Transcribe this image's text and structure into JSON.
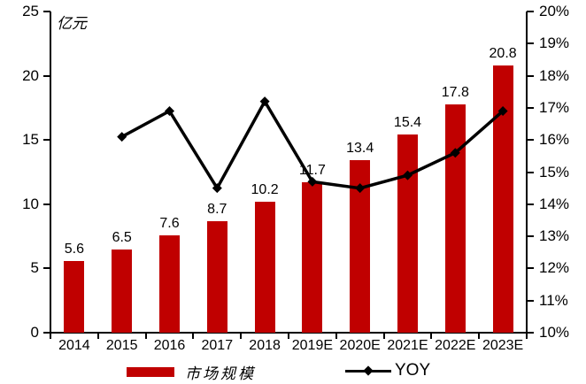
{
  "chart": {
    "unit_label": "亿元",
    "legend": [
      {
        "label": "市场规模",
        "marker": "bar-swatch",
        "color": "#C00000"
      },
      {
        "label": "YOY",
        "marker": "line-diamond",
        "color": "#000000"
      }
    ]
  },
  "chart_data": {
    "type": "bar",
    "categories": [
      "2014",
      "2015",
      "2016",
      "2017",
      "2018",
      "2019E",
      "2020E",
      "2021E",
      "2022E",
      "2023E"
    ],
    "series": [
      {
        "name": "市场规模",
        "type": "bar",
        "axis": "left",
        "color": "#C00000",
        "values": [
          5.6,
          6.5,
          7.6,
          8.7,
          10.2,
          11.7,
          13.4,
          15.4,
          17.8,
          20.8
        ],
        "labels": [
          "5.6",
          "6.5",
          "7.6",
          "8.7",
          "10.2",
          "11.7",
          "13.4",
          "15.4",
          "17.8",
          "20.8"
        ]
      },
      {
        "name": "YOY",
        "type": "line",
        "axis": "right",
        "color": "#000000",
        "marker": "diamond",
        "values": [
          null,
          16.1,
          16.9,
          14.5,
          17.2,
          14.7,
          14.5,
          14.9,
          15.6,
          16.9
        ]
      }
    ],
    "left_axis": {
      "label": "亿元",
      "min": 0,
      "max": 25,
      "ticks": [
        0,
        5,
        10,
        15,
        20,
        25
      ]
    },
    "right_axis": {
      "min": 10,
      "max": 20,
      "tick_labels": [
        "10%",
        "11%",
        "12%",
        "13%",
        "14%",
        "15%",
        "16%",
        "17%",
        "18%",
        "19%",
        "20%"
      ]
    },
    "grid": false,
    "legend_position": "bottom"
  }
}
